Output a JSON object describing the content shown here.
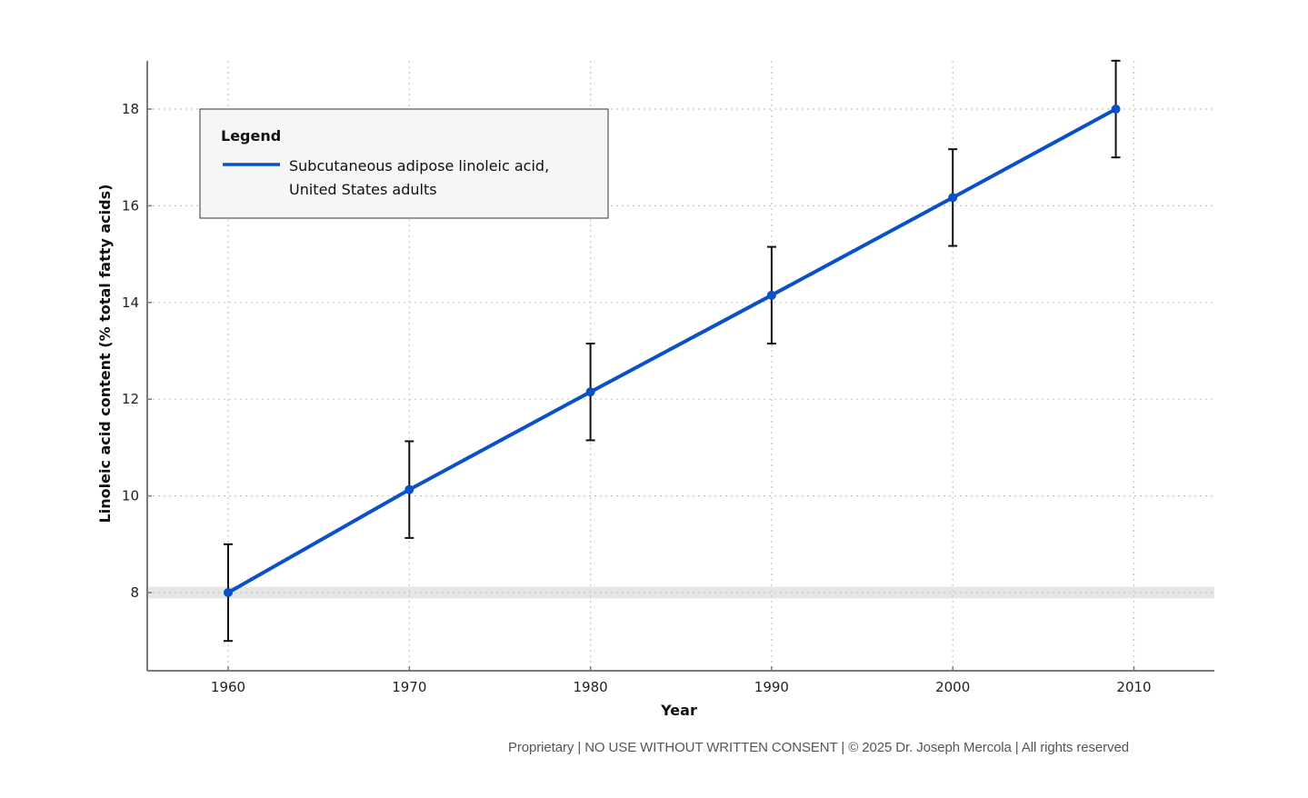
{
  "chart_data": {
    "type": "line",
    "title": "",
    "xlabel": "Year",
    "ylabel": "Linoleic acid content (% total fatty acids)",
    "xlim": [
      1955.5,
      2014.5
    ],
    "ylim": [
      6.4,
      19
    ],
    "x_ticks": [
      1960,
      1970,
      1980,
      1990,
      2000,
      2010
    ],
    "y_ticks": [
      8,
      10,
      12,
      14,
      16,
      18
    ],
    "grid": true,
    "legend": {
      "title": "Legend",
      "position": "upper-left",
      "entries": [
        {
          "label_line1": "Subcutaneous adipose linoleic acid,",
          "label_line2": "United States adults",
          "color": "#0a50c8"
        }
      ]
    },
    "series": [
      {
        "name": "Subcutaneous adipose linoleic acid, United States adults",
        "color": "#0a50c8",
        "x": [
          1960,
          1970,
          1980,
          1990,
          2000,
          2009
        ],
        "values": [
          8.0,
          10.13,
          12.15,
          14.15,
          16.17,
          18.0
        ],
        "error": [
          1.0,
          1.0,
          1.0,
          1.0,
          1.0,
          1.0
        ]
      }
    ],
    "reference_band": {
      "y": 8,
      "half_width": 0.12,
      "color": "#e6e6e6"
    }
  },
  "footer": {
    "text": "Proprietary | NO USE WITHOUT WRITTEN CONSENT | © 2025 Dr. Joseph Mercola | All rights reserved"
  }
}
